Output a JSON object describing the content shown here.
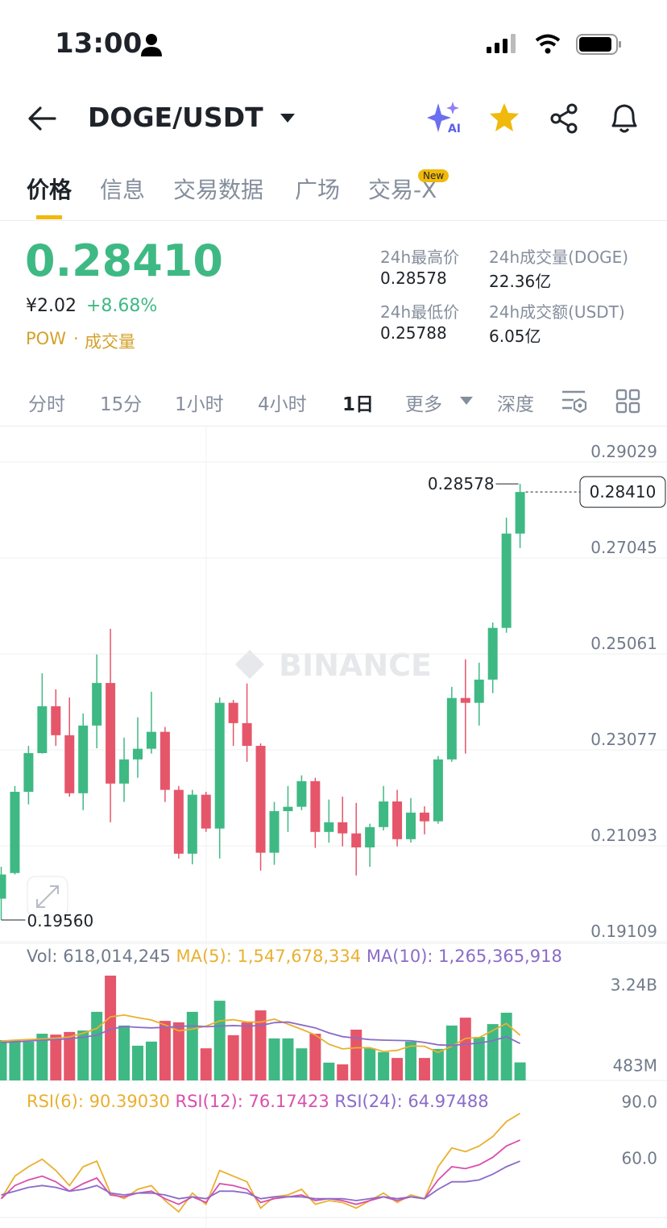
{
  "status_bar": {
    "time": "13:00"
  },
  "header": {
    "pair": "DOGE/USDT",
    "ai_badge": "AI"
  },
  "tabs": {
    "items": [
      "价格",
      "信息",
      "交易数据",
      "广场",
      "交易-X"
    ],
    "new_badge": "New"
  },
  "ticker": {
    "price": "0.28410",
    "cny": "¥2.02",
    "change": "+8.68%",
    "tags": [
      "POW",
      "成交量"
    ],
    "stats": [
      {
        "label": "24h最高价",
        "value": "0.28578"
      },
      {
        "label": "24h成交量(DOGE)",
        "value": "22.36亿"
      },
      {
        "label": "24h最低价",
        "value": "0.25788"
      },
      {
        "label": "24h成交额(USDT)",
        "value": "6.05亿"
      }
    ]
  },
  "intervals": [
    "分时",
    "15分",
    "1小时",
    "4小时",
    "1日",
    "更多",
    "深度"
  ],
  "chart_data": {
    "type": "candlestick",
    "watermark": "BINANCE",
    "up_color": "#3fb984",
    "down_color": "#e5566a",
    "open": [
      0.2,
      0.2053,
      0.2221,
      0.2301,
      0.2398,
      0.2338,
      0.2218,
      0.2358,
      0.2446,
      0.2238,
      0.2288,
      0.231,
      0.2345,
      0.2225,
      0.2093,
      0.2215,
      0.2145,
      0.2405,
      0.2363,
      0.2316,
      0.2095,
      0.2181,
      0.219,
      0.2243,
      0.2138,
      0.2158,
      0.2135,
      0.2106,
      0.2148,
      0.2201,
      0.2123,
      0.2178,
      0.216,
      0.2288,
      0.2415,
      0.2405,
      0.2453,
      0.256,
      0.2755
    ],
    "high": [
      0.2066,
      0.2233,
      0.2316,
      0.2466,
      0.2433,
      0.2416,
      0.2383,
      0.2505,
      0.2558,
      0.2333,
      0.2375,
      0.2428,
      0.2355,
      0.2233,
      0.2225,
      0.2221,
      0.2416,
      0.2411,
      0.2445,
      0.2321,
      0.22,
      0.2233,
      0.2255,
      0.225,
      0.2205,
      0.2211,
      0.2198,
      0.2155,
      0.2233,
      0.2225,
      0.2208,
      0.2191,
      0.2295,
      0.2438,
      0.2495,
      0.2488,
      0.2571,
      0.2788,
      0.28578
    ],
    "low": [
      0.1956,
      0.205,
      0.2195,
      0.23,
      0.2316,
      0.2211,
      0.2183,
      0.2311,
      0.2158,
      0.22,
      0.225,
      0.23,
      0.22,
      0.2083,
      0.2071,
      0.2138,
      0.2083,
      0.2316,
      0.2283,
      0.2058,
      0.207,
      0.2138,
      0.2183,
      0.2105,
      0.2116,
      0.2108,
      0.2048,
      0.2066,
      0.2141,
      0.2108,
      0.2116,
      0.2133,
      0.2155,
      0.2283,
      0.23,
      0.2358,
      0.2425,
      0.255,
      0.2725
    ],
    "close": [
      0.205,
      0.2221,
      0.2301,
      0.2398,
      0.2338,
      0.2218,
      0.2358,
      0.2446,
      0.2238,
      0.2288,
      0.231,
      0.2345,
      0.2225,
      0.2093,
      0.2215,
      0.2145,
      0.2405,
      0.2363,
      0.2316,
      0.2095,
      0.2181,
      0.219,
      0.2243,
      0.2138,
      0.2158,
      0.2135,
      0.2106,
      0.2148,
      0.2201,
      0.2123,
      0.2178,
      0.216,
      0.2288,
      0.2415,
      0.2405,
      0.2453,
      0.256,
      0.2755,
      0.2841
    ],
    "max_label": "0.28578",
    "min_label": "0.19560",
    "last_price_label": "0.28410",
    "ylim": [
      0.19109,
      0.2978
    ],
    "yticks": [
      0.19109,
      0.21093,
      0.23077,
      0.25061,
      0.27045,
      0.29029
    ],
    "grid": true,
    "volume": {
      "name": "Vol:",
      "value_label": "618,014,245",
      "values": [
        1380000000,
        1380000000,
        1330000000,
        1600000000,
        1570000000,
        1660000000,
        1710000000,
        2350000000,
        3590000000,
        1880000000,
        1190000000,
        1330000000,
        2040000000,
        1990000000,
        2350000000,
        1100000000,
        2730000000,
        1550000000,
        1990000000,
        2400000000,
        1440000000,
        1440000000,
        1100000000,
        1600000000,
        610000000,
        550000000,
        1740000000,
        1100000000,
        970000000,
        770000000,
        1330000000,
        770000000,
        1080000000,
        1880000000,
        2150000000,
        1490000000,
        1930000000,
        2320000000,
        618014245
      ],
      "ylim": [
        0,
        3700000000
      ],
      "yticks": [
        {
          "value": 483000000,
          "label": "483M"
        },
        {
          "value": 3240000000,
          "label": "3.24B"
        }
      ],
      "series": [
        {
          "name": "MA(5):",
          "color": "#e9b030",
          "value_label": "1,547,678,334",
          "values": [
            1350000000,
            1380000000,
            1400000000,
            1420000000,
            1450000000,
            1490000000,
            1620000000,
            1780000000,
            2180000000,
            2240000000,
            2150000000,
            2070000000,
            1900000000,
            1700000000,
            1760000000,
            1860000000,
            2040000000,
            2080000000,
            2000000000,
            2000000000,
            2100000000,
            1930000000,
            1750000000,
            1560000000,
            1240000000,
            1080000000,
            1120000000,
            1120000000,
            990000000,
            1030000000,
            1180000000,
            1170000000,
            960000000,
            1170000000,
            1440000000,
            1470000000,
            1710000000,
            1950000000,
            1547678334
          ]
        },
        {
          "name": "MA(10):",
          "color": "#8a6cc8",
          "value_label": "1,265,365,918",
          "values": [
            1300000000,
            1320000000,
            1350000000,
            1380000000,
            1400000000,
            1430000000,
            1480000000,
            1550000000,
            1750000000,
            1850000000,
            1820000000,
            1800000000,
            1820000000,
            1850000000,
            1870000000,
            1840000000,
            1860000000,
            1880000000,
            1860000000,
            1880000000,
            1980000000,
            2000000000,
            1900000000,
            1800000000,
            1630000000,
            1500000000,
            1450000000,
            1400000000,
            1380000000,
            1370000000,
            1360000000,
            1300000000,
            1220000000,
            1200000000,
            1240000000,
            1280000000,
            1360000000,
            1500000000,
            1265365918
          ]
        }
      ]
    },
    "rsi": {
      "ylim": [
        35,
        95
      ],
      "yticks": [
        {
          "value": 90,
          "label": "90.0"
        },
        {
          "value": 60,
          "label": "60.0"
        }
      ],
      "series": [
        {
          "name": "RSI(6):",
          "color": "#e9b030",
          "value_label": "90.39030",
          "values": [
            45,
            57,
            62,
            66,
            60,
            52,
            62,
            65,
            48,
            45,
            50,
            52,
            44,
            38,
            48,
            42,
            60,
            57,
            54,
            40,
            46,
            47,
            50,
            42,
            44,
            43,
            40,
            44,
            48,
            43,
            47,
            45,
            62,
            72,
            70,
            73,
            78,
            86,
            90.3903
          ]
        },
        {
          "name": "RSI(12):",
          "color": "#d84fae",
          "value_label": "76.17423",
          "values": [
            45,
            52,
            55,
            57,
            54,
            49,
            53,
            56,
            47,
            46,
            48,
            49,
            45,
            42,
            46,
            43,
            53,
            52,
            50,
            43,
            45,
            46,
            47,
            44,
            45,
            44,
            42,
            44,
            46,
            44,
            46,
            45,
            55,
            62,
            61,
            63,
            67,
            73,
            76.17423
          ]
        },
        {
          "name": "RSI(24):",
          "color": "#8a6cc8",
          "value_label": "64.97488",
          "values": [
            47,
            49,
            51,
            52,
            51,
            49,
            50,
            52,
            48,
            47,
            48,
            48,
            47,
            45,
            46,
            45,
            49,
            49,
            48,
            45,
            46,
            46,
            46,
            45,
            45,
            45,
            44,
            45,
            46,
            45,
            46,
            45,
            50,
            54,
            54,
            55,
            58,
            62,
            64.97488
          ]
        }
      ]
    }
  }
}
